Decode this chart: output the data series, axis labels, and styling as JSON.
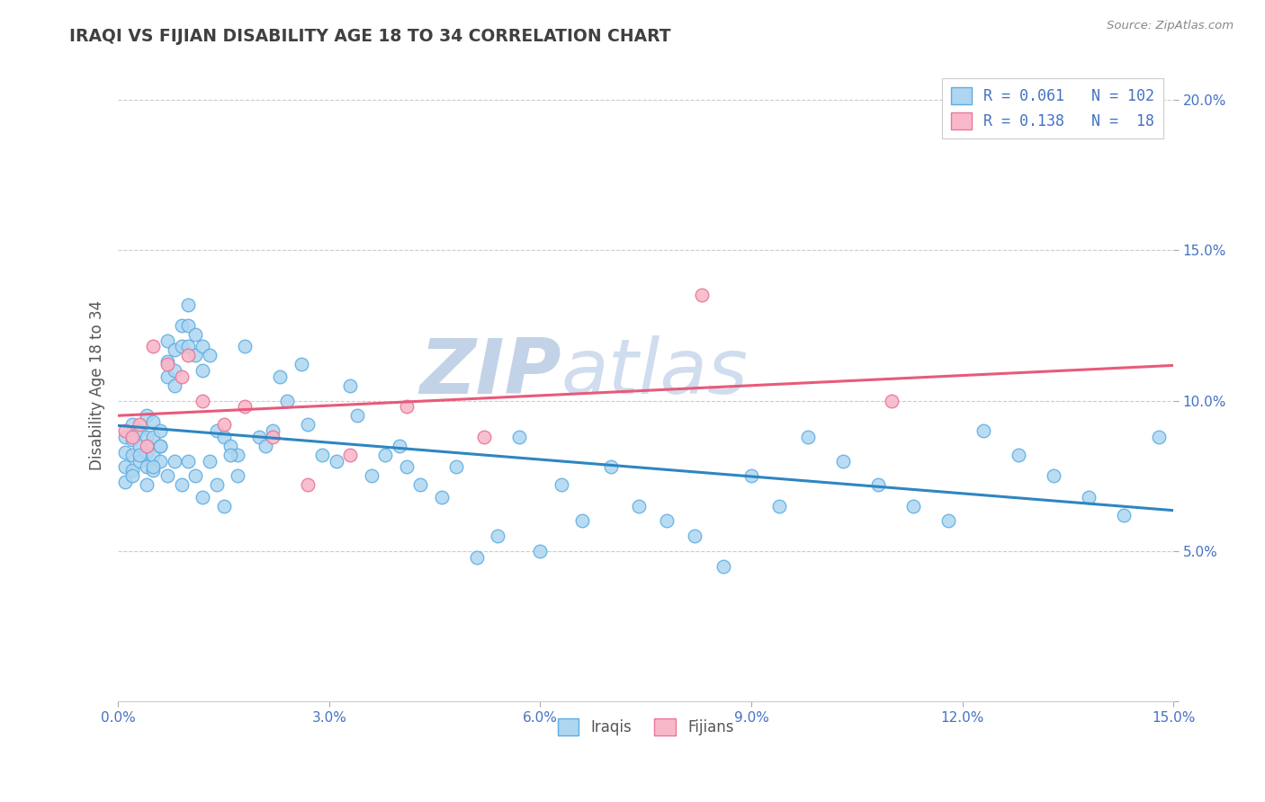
{
  "title": "IRAQI VS FIJIAN DISABILITY AGE 18 TO 34 CORRELATION CHART",
  "source": "Source: ZipAtlas.com",
  "ylabel": "Disability Age 18 to 34",
  "xlim": [
    0.0,
    0.15
  ],
  "ylim": [
    0.0,
    0.21
  ],
  "xticks": [
    0.0,
    0.03,
    0.06,
    0.09,
    0.12,
    0.15
  ],
  "yticks": [
    0.0,
    0.05,
    0.1,
    0.15,
    0.2
  ],
  "xtick_labels": [
    "0.0%",
    "3.0%",
    "6.0%",
    "9.0%",
    "12.0%",
    "15.0%"
  ],
  "ytick_labels": [
    "",
    "5.0%",
    "10.0%",
    "15.0%",
    "20.0%"
  ],
  "iraqis_R": 0.061,
  "iraqis_N": 102,
  "fijians_R": 0.138,
  "fijians_N": 18,
  "iraqis_color": "#aed6f1",
  "iraqis_edge": "#5dade2",
  "fijians_color": "#f9b8c9",
  "fijians_edge": "#e87898",
  "trendline_iraqis": "#2e86c1",
  "trendline_fijians": "#e85a7a",
  "watermark_zip_color": "#b8cce4",
  "watermark_atlas_color": "#c8d8e8",
  "background_color": "#ffffff",
  "axis_label_color": "#4472c4",
  "title_color": "#404040",
  "iraqis_x": [
    0.001,
    0.001,
    0.001,
    0.001,
    0.002,
    0.002,
    0.002,
    0.002,
    0.003,
    0.003,
    0.003,
    0.004,
    0.004,
    0.004,
    0.004,
    0.005,
    0.005,
    0.005,
    0.005,
    0.006,
    0.006,
    0.006,
    0.007,
    0.007,
    0.007,
    0.008,
    0.008,
    0.008,
    0.009,
    0.009,
    0.01,
    0.01,
    0.01,
    0.011,
    0.011,
    0.012,
    0.012,
    0.013,
    0.014,
    0.015,
    0.016,
    0.017,
    0.018,
    0.02,
    0.021,
    0.022,
    0.023,
    0.024,
    0.026,
    0.027,
    0.029,
    0.031,
    0.033,
    0.034,
    0.036,
    0.038,
    0.04,
    0.041,
    0.043,
    0.046,
    0.048,
    0.051,
    0.054,
    0.057,
    0.06,
    0.063,
    0.066,
    0.07,
    0.074,
    0.078,
    0.082,
    0.086,
    0.09,
    0.094,
    0.098,
    0.103,
    0.108,
    0.113,
    0.118,
    0.123,
    0.128,
    0.133,
    0.138,
    0.143,
    0.148,
    0.152,
    0.002,
    0.003,
    0.004,
    0.005,
    0.006,
    0.007,
    0.008,
    0.009,
    0.01,
    0.011,
    0.012,
    0.013,
    0.014,
    0.015,
    0.016,
    0.017
  ],
  "iraqis_y": [
    0.088,
    0.083,
    0.078,
    0.073,
    0.092,
    0.087,
    0.082,
    0.077,
    0.09,
    0.085,
    0.08,
    0.095,
    0.088,
    0.083,
    0.078,
    0.093,
    0.088,
    0.082,
    0.077,
    0.09,
    0.085,
    0.08,
    0.12,
    0.113,
    0.108,
    0.117,
    0.11,
    0.105,
    0.125,
    0.118,
    0.132,
    0.125,
    0.118,
    0.122,
    0.115,
    0.118,
    0.11,
    0.115,
    0.09,
    0.088,
    0.085,
    0.082,
    0.118,
    0.088,
    0.085,
    0.09,
    0.108,
    0.1,
    0.112,
    0.092,
    0.082,
    0.08,
    0.105,
    0.095,
    0.075,
    0.082,
    0.085,
    0.078,
    0.072,
    0.068,
    0.078,
    0.048,
    0.055,
    0.088,
    0.05,
    0.072,
    0.06,
    0.078,
    0.065,
    0.06,
    0.055,
    0.045,
    0.075,
    0.065,
    0.088,
    0.08,
    0.072,
    0.065,
    0.06,
    0.09,
    0.082,
    0.075,
    0.068,
    0.062,
    0.088,
    0.078,
    0.075,
    0.082,
    0.072,
    0.078,
    0.085,
    0.075,
    0.08,
    0.072,
    0.08,
    0.075,
    0.068,
    0.08,
    0.072,
    0.065,
    0.082,
    0.075
  ],
  "fijians_x": [
    0.001,
    0.002,
    0.003,
    0.004,
    0.005,
    0.007,
    0.009,
    0.01,
    0.012,
    0.015,
    0.018,
    0.022,
    0.027,
    0.033,
    0.041,
    0.052,
    0.083,
    0.11
  ],
  "fijians_y": [
    0.09,
    0.088,
    0.092,
    0.085,
    0.118,
    0.112,
    0.108,
    0.115,
    0.1,
    0.092,
    0.098,
    0.088,
    0.072,
    0.082,
    0.098,
    0.088,
    0.135,
    0.1
  ]
}
